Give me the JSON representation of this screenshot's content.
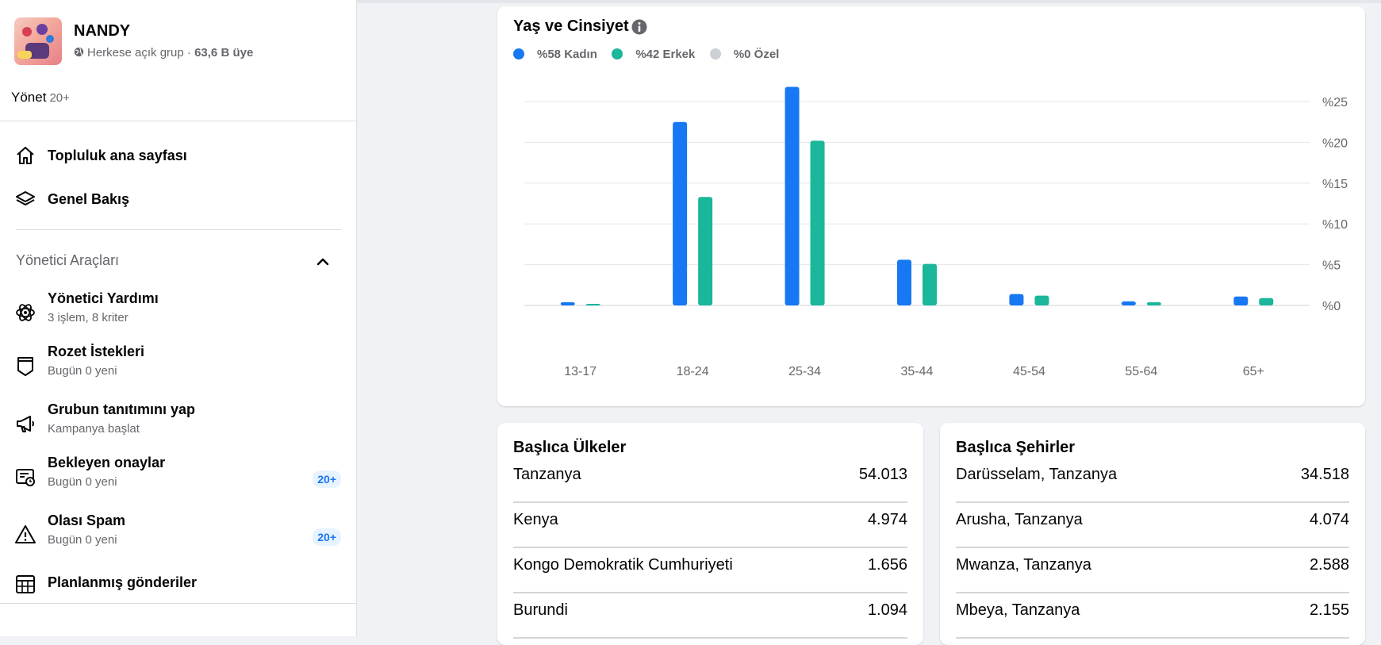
{
  "group": {
    "name": "NANDY",
    "privacy": "Herkese açık grup",
    "separator": " · ",
    "members": "63,6 B üye"
  },
  "manage": {
    "label": "Yönet",
    "count": "20+"
  },
  "nav": [
    {
      "label": "Topluluk ana sayfası",
      "icon": "home-icon"
    },
    {
      "label": "Genel Bakış",
      "icon": "layers-icon"
    }
  ],
  "admin_tools": {
    "title": "Yönetici Araçları",
    "items": [
      {
        "title": "Yönetici Yardımı",
        "subtitle": "3 işlem, 8 kriter",
        "icon": "atom-icon",
        "badge": ""
      },
      {
        "title": "Rozet İstekleri",
        "subtitle": "Bugün 0 yeni",
        "icon": "badge-icon",
        "badge": ""
      },
      {
        "title": "Grubun tanıtımını yap",
        "subtitle": "Kampanya başlat",
        "icon": "megaphone-icon",
        "badge": ""
      },
      {
        "title": "Bekleyen onaylar",
        "subtitle": "Bugün 0 yeni",
        "icon": "pending-posts-icon",
        "badge": "20+"
      },
      {
        "title": "Olası Spam",
        "subtitle": "Bugün 0 yeni",
        "icon": "warning-icon",
        "badge": "20+"
      },
      {
        "title": "Planlanmış gönderiler",
        "subtitle": "",
        "icon": "calendar-icon",
        "badge": ""
      }
    ]
  },
  "colors": {
    "female": "#1877f2",
    "male": "#1ab79a",
    "custom": "#ccd0d5",
    "accent": "#1877f2"
  },
  "chart_data": {
    "type": "bar",
    "title": "Yaş ve Cinsiyet",
    "legend": [
      {
        "label": "%58 Kadın",
        "color": "#1877f2"
      },
      {
        "label": "%42 Erkek",
        "color": "#1ab79a"
      },
      {
        "label": "%0 Özel",
        "color": "#ccd0d5"
      }
    ],
    "categories": [
      "13-17",
      "18-24",
      "25-34",
      "35-44",
      "45-54",
      "55-64",
      "65+"
    ],
    "series": [
      {
        "name": "Kadın",
        "values": [
          0.4,
          22.5,
          26.8,
          5.6,
          1.4,
          0.5,
          1.1
        ]
      },
      {
        "name": "Erkek",
        "values": [
          0.2,
          13.3,
          20.2,
          5.1,
          1.2,
          0.4,
          0.9
        ]
      },
      {
        "name": "Özel",
        "values": [
          0,
          0,
          0,
          0,
          0,
          0,
          0
        ]
      }
    ],
    "yticks": [
      0,
      5,
      10,
      15,
      20,
      25
    ],
    "ytick_labels": [
      "%0",
      "%5",
      "%10",
      "%15",
      "%20",
      "%25"
    ],
    "ylim": [
      0,
      25
    ],
    "grid": true,
    "xlabel": "",
    "ylabel": ""
  },
  "countries": {
    "title": "Başlıca Ülkeler",
    "rows": [
      {
        "name": "Tanzanya",
        "value": "54.013"
      },
      {
        "name": "Kenya",
        "value": "4.974"
      },
      {
        "name": "Kongo Demokratik Cumhuriyeti",
        "value": "1.656"
      },
      {
        "name": "Burundi",
        "value": "1.094"
      }
    ]
  },
  "cities": {
    "title": "Başlıca Şehirler",
    "rows": [
      {
        "name": "Darüsselam, Tanzanya",
        "value": "34.518"
      },
      {
        "name": "Arusha, Tanzanya",
        "value": "4.074"
      },
      {
        "name": "Mwanza, Tanzanya",
        "value": "2.588"
      },
      {
        "name": "Mbeya, Tanzanya",
        "value": "2.155"
      }
    ]
  }
}
